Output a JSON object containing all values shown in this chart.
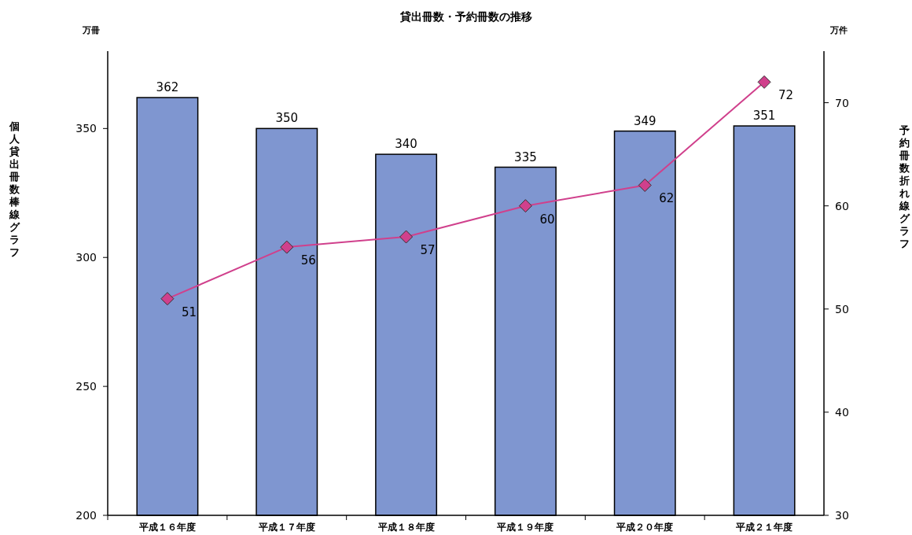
{
  "chart_data": {
    "type": "bar",
    "title": "貸出冊数・予約冊数の推移",
    "ylabel": "個人貸出冊数棒線グラフ",
    "y2label": "予約冊数折れ線グラフ",
    "annotations": [
      "万冊",
      "万件"
    ],
    "categories": [
      "平成１６年度",
      "平成１７年度",
      "平成１８年度",
      "平成１９年度",
      "平成２０年度",
      "平成２１年度"
    ],
    "series": [
      {
        "color": "#7f96d0",
        "values": [
          362,
          350,
          340,
          335,
          349,
          351
        ]
      },
      {
        "type": "line",
        "axis": "y2",
        "color": "#d0408c",
        "values": [
          51,
          56,
          57,
          60,
          62,
          72
        ]
      }
    ],
    "ylim": [
      200,
      380
    ],
    "yticks": [
      200,
      250,
      300,
      350
    ],
    "y2lim": [
      30,
      75
    ],
    "y2ticks": [
      30,
      40,
      50,
      60,
      70
    ],
    "data_labels": true,
    "marker": "diamond",
    "line_style": "solid",
    "grid": false
  }
}
